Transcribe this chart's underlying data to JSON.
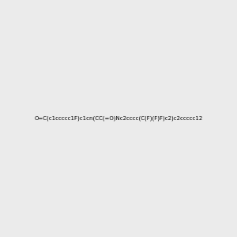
{
  "smiles": "O=C(c1ccccc1F)c1cn(CC(=O)Nc2cccc(C(F)(F)F)c2)c2ccccc12",
  "bg_color": "#ebebeb",
  "img_size": [
    300,
    300
  ],
  "atom_colors": {
    "O": [
      1.0,
      0.0,
      0.0
    ],
    "N": [
      0.0,
      0.0,
      1.0
    ],
    "F": [
      0.78,
      0.08,
      0.52
    ],
    "C": [
      0.0,
      0.0,
      0.0
    ]
  }
}
